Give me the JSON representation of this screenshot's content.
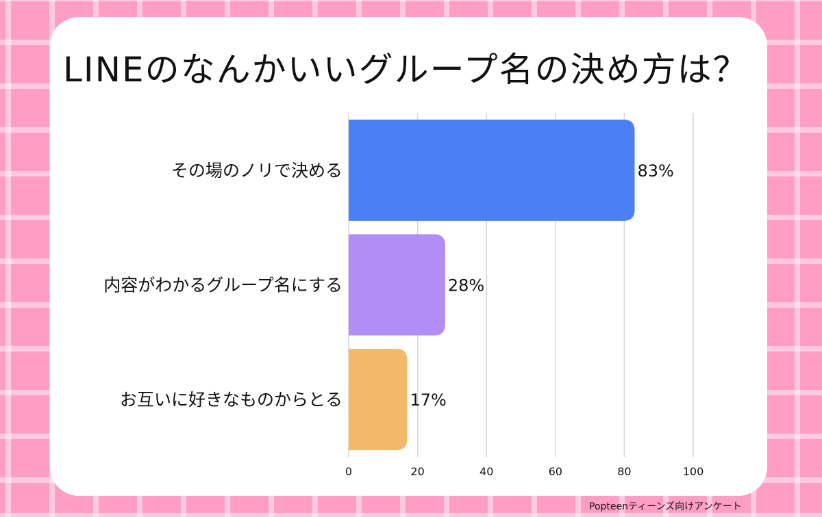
{
  "title": "LINEのなんかいいグループ名の決め方は？",
  "credit": "Popteenティーンズ向けアンケート",
  "chart_data": {
    "type": "bar",
    "orientation": "horizontal",
    "title": "LINEのなんかいいグループ名の決め方は？",
    "categories": [
      "その場のノリで決める",
      "内容がわかるグループ名にする",
      "お互いに好きなものからとる"
    ],
    "values": [
      83,
      28,
      17
    ],
    "value_labels": [
      "83%",
      "28%",
      "17%"
    ],
    "colors": [
      "#4a7ff5",
      "#b08ef5",
      "#f2b96b"
    ],
    "xlim": [
      0,
      100
    ],
    "xticks": [
      0,
      20,
      40,
      60,
      80,
      100
    ],
    "grid": true
  }
}
